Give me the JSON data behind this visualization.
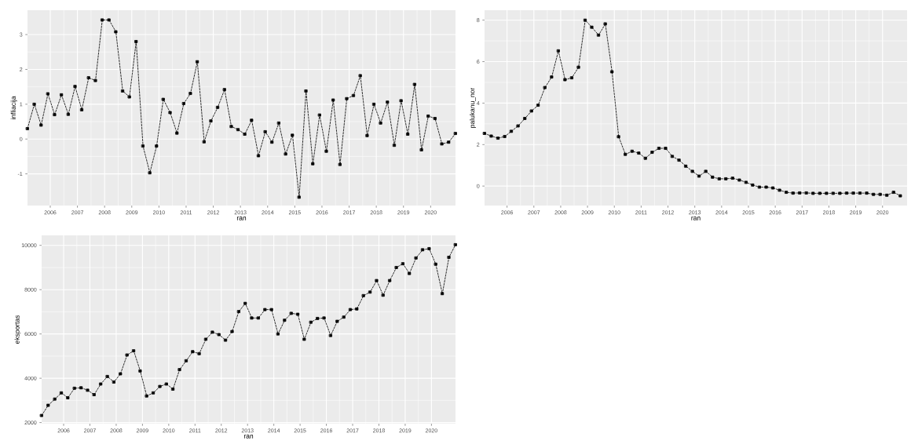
{
  "chart_data": [
    {
      "type": "line",
      "xlabel": "ran",
      "ylabel": "infliacija",
      "grid": true,
      "marker": "square",
      "line_style": "dashed",
      "x": [
        "2005-03",
        "2005-06",
        "2005-09",
        "2005-12",
        "2006-03",
        "2006-06",
        "2006-09",
        "2006-12",
        "2007-03",
        "2007-06",
        "2007-09",
        "2007-12",
        "2008-03",
        "2008-06",
        "2008-09",
        "2008-12",
        "2009-03",
        "2009-06",
        "2009-09",
        "2009-12",
        "2010-03",
        "2010-06",
        "2010-09",
        "2010-12",
        "2011-03",
        "2011-06",
        "2011-09",
        "2011-12",
        "2012-03",
        "2012-06",
        "2012-09",
        "2012-12",
        "2013-03",
        "2013-06",
        "2013-09",
        "2013-12",
        "2014-03",
        "2014-06",
        "2014-09",
        "2014-12",
        "2015-03",
        "2015-06",
        "2015-09",
        "2015-12",
        "2016-03",
        "2016-06",
        "2016-09",
        "2016-12",
        "2017-03",
        "2017-06",
        "2017-09",
        "2017-12",
        "2018-03",
        "2018-06",
        "2018-09",
        "2018-12",
        "2019-03",
        "2019-06",
        "2019-09",
        "2019-12",
        "2020-03",
        "2020-06",
        "2020-09",
        "2020-12"
      ],
      "series": [
        {
          "color": "#000000",
          "values": [
            0.3,
            1.0,
            0.4,
            1.3,
            0.7,
            1.27,
            0.71,
            1.51,
            0.84,
            1.76,
            1.68,
            3.42,
            3.42,
            3.08,
            1.38,
            1.21,
            2.8,
            -0.2,
            -0.97,
            -0.2,
            1.14,
            0.76,
            0.17,
            1.02,
            1.31,
            2.22,
            -0.08,
            0.52,
            0.91,
            1.42,
            0.36,
            0.27,
            0.14,
            0.54,
            -0.48,
            0.21,
            -0.09,
            0.46,
            -0.43,
            0.11,
            -1.67,
            1.38,
            -0.71,
            0.69,
            -0.35,
            1.12,
            -0.73,
            1.16,
            1.25,
            1.82,
            0.1,
            1.0,
            0.46,
            1.06,
            -0.18,
            1.1,
            0.14,
            1.57,
            -0.31,
            0.66,
            0.59,
            -0.14,
            -0.09,
            0.16
          ]
        }
      ],
      "xlim": [
        "2005-03",
        "2020-12"
      ],
      "ylim": [
        -1.91,
        3.7
      ],
      "xticks": [
        "2006",
        "2007",
        "2008",
        "2009",
        "2010",
        "2011",
        "2012",
        "2013",
        "2014",
        "2015",
        "2016",
        "2017",
        "2018",
        "2019",
        "2020"
      ],
      "yticks": [
        -1,
        0,
        1,
        2,
        3
      ]
    },
    {
      "type": "line",
      "xlabel": "ran",
      "ylabel": "palukanu_nor",
      "grid": true,
      "marker": "square",
      "line_style": "dashed",
      "series": [
        {
          "color": "#000000",
          "x": [
            "2005-03",
            "2005-06",
            "2005-09",
            "2005-12",
            "2006-03",
            "2006-06",
            "2006-09",
            "2006-12",
            "2007-03",
            "2007-06",
            "2007-09",
            "2007-12",
            "2008-03",
            "2008-06",
            "2008-09",
            "2008-12",
            "2009-03",
            "2009-06",
            "2009-09",
            "2009-12",
            "2010-03",
            "2010-06",
            "2010-09",
            "2010-12",
            "2011-03",
            "2011-06",
            "2011-09",
            "2011-12",
            "2012-03",
            "2012-06",
            "2012-09",
            "2012-12",
            "2013-03",
            "2013-06",
            "2013-09",
            "2013-12",
            "2014-03",
            "2014-06",
            "2014-09",
            "2014-12",
            "2015-03",
            "2015-06",
            "2015-09",
            "2015-12",
            "2016-03",
            "2016-06",
            "2016-09",
            "2016-12",
            "2017-03",
            "2017-06",
            "2017-09",
            "2017-12",
            "2018-03",
            "2018-06",
            "2018-09",
            "2018-12",
            "2019-03",
            "2019-06",
            "2019-09",
            "2019-12",
            "2020-03",
            "2020-06",
            "2020-09"
          ],
          "values": [
            2.54,
            2.41,
            2.31,
            2.39,
            2.64,
            2.9,
            3.26,
            3.62,
            3.9,
            4.75,
            5.26,
            6.52,
            5.13,
            5.22,
            5.73,
            8.0,
            7.66,
            7.28,
            7.82,
            5.51,
            2.38,
            1.53,
            1.68,
            1.59,
            1.34,
            1.63,
            1.82,
            1.82,
            1.43,
            1.25,
            0.96,
            0.71,
            0.48,
            0.71,
            0.43,
            0.35,
            0.35,
            0.38,
            0.29,
            0.18,
            0.05,
            -0.05,
            -0.05,
            -0.09,
            -0.2,
            -0.3,
            -0.34,
            -0.33,
            -0.33,
            -0.35,
            -0.35,
            -0.35,
            -0.35,
            -0.35,
            -0.34,
            -0.34,
            -0.34,
            -0.34,
            -0.4,
            -0.4,
            -0.44,
            -0.3,
            -0.47
          ]
        }
      ],
      "xlim": [
        "2005-03",
        "2020-12"
      ],
      "ylim": [
        -0.94,
        8.48
      ],
      "xticks": [
        "2006",
        "2007",
        "2008",
        "2009",
        "2010",
        "2011",
        "2012",
        "2013",
        "2014",
        "2015",
        "2016",
        "2017",
        "2018",
        "2019",
        "2020"
      ],
      "yticks": [
        0,
        2,
        4,
        6,
        8
      ]
    },
    {
      "type": "line",
      "xlabel": "ran",
      "ylabel": "eksportas",
      "grid": true,
      "marker": "square",
      "line_style": "dashed",
      "x": [
        "2005-03",
        "2005-06",
        "2005-09",
        "2005-12",
        "2006-03",
        "2006-06",
        "2006-09",
        "2006-12",
        "2007-03",
        "2007-06",
        "2007-09",
        "2007-12",
        "2008-03",
        "2008-06",
        "2008-09",
        "2008-12",
        "2009-03",
        "2009-06",
        "2009-09",
        "2009-12",
        "2010-03",
        "2010-06",
        "2010-09",
        "2010-12",
        "2011-03",
        "2011-06",
        "2011-09",
        "2011-12",
        "2012-03",
        "2012-06",
        "2012-09",
        "2012-12",
        "2013-03",
        "2013-06",
        "2013-09",
        "2013-12",
        "2014-03",
        "2014-06",
        "2014-09",
        "2014-12",
        "2015-03",
        "2015-06",
        "2015-09",
        "2015-12",
        "2016-03",
        "2016-06",
        "2016-09",
        "2016-12",
        "2017-03",
        "2017-06",
        "2017-09",
        "2017-12",
        "2018-03",
        "2018-06",
        "2018-09",
        "2018-12",
        "2019-03",
        "2019-06",
        "2019-09",
        "2019-12",
        "2020-03",
        "2020-06",
        "2020-09",
        "2020-12"
      ],
      "series": [
        {
          "color": "#000000",
          "values": [
            2320,
            2780,
            3060,
            3340,
            3120,
            3550,
            3570,
            3460,
            3260,
            3740,
            4080,
            3830,
            4200,
            5050,
            5240,
            4330,
            3200,
            3340,
            3630,
            3740,
            3510,
            4390,
            4790,
            5200,
            5110,
            5760,
            6080,
            5970,
            5720,
            6110,
            7010,
            7380,
            6720,
            6720,
            7100,
            7100,
            6000,
            6620,
            6930,
            6890,
            5760,
            6530,
            6700,
            6720,
            5930,
            6570,
            6760,
            7100,
            7130,
            7730,
            7890,
            8410,
            7750,
            8410,
            9000,
            9170,
            8730,
            9430,
            9800,
            9850,
            9150,
            7820,
            9460,
            10030
          ]
        }
      ],
      "xlim": [
        "2005-03",
        "2020-12"
      ],
      "ylim": [
        1950,
        10450
      ],
      "xticks": [
        "2006",
        "2007",
        "2008",
        "2009",
        "2010",
        "2011",
        "2012",
        "2013",
        "2014",
        "2015",
        "2016",
        "2017",
        "2018",
        "2019",
        "2020"
      ],
      "yticks": [
        2000,
        4000,
        6000,
        8000,
        10000
      ]
    }
  ]
}
